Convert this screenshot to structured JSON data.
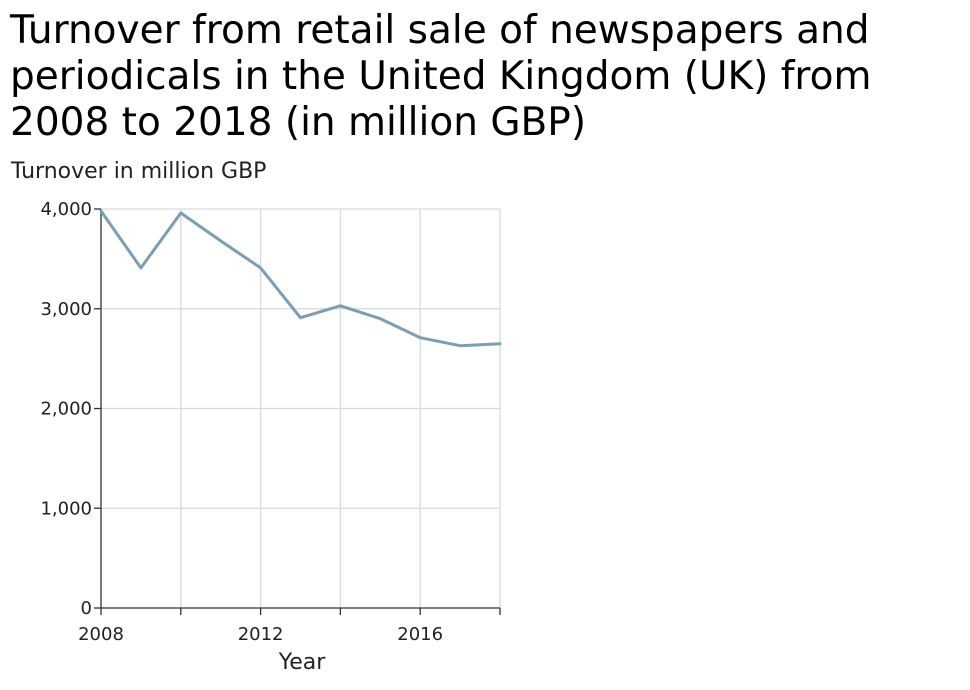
{
  "chart_data": {
    "type": "line",
    "title": "Turnover from retail sale of newspapers and periodicals in the United Kingdom (UK) from 2008 to 2018 (in million GBP)",
    "xlabel": "Year",
    "ylabel": "Turnover in million GBP",
    "x": [
      2008,
      2009,
      2010,
      2011,
      2012,
      2013,
      2014,
      2015,
      2016,
      2017,
      2018
    ],
    "series": [
      {
        "values": [
          3980,
          3410,
          3960,
          3680,
          3410,
          2910,
          3030,
          2900,
          2710,
          2630,
          2650
        ]
      }
    ],
    "xlim": [
      2008,
      2018
    ],
    "ylim": [
      0,
      4000
    ],
    "x_ticks": [
      2008,
      2012,
      2016
    ],
    "x_tick_labels": [
      "2008",
      "2012",
      "2016"
    ],
    "y_ticks": [
      0,
      1000,
      2000,
      3000,
      4000
    ],
    "y_tick_labels": [
      "0",
      "1,000",
      "2,000",
      "3,000",
      "4,000"
    ],
    "grid": true,
    "legend": "none",
    "colors": {
      "line": "#7c9eb2",
      "grid": "#d9d9d9",
      "axis": "#333333"
    }
  }
}
